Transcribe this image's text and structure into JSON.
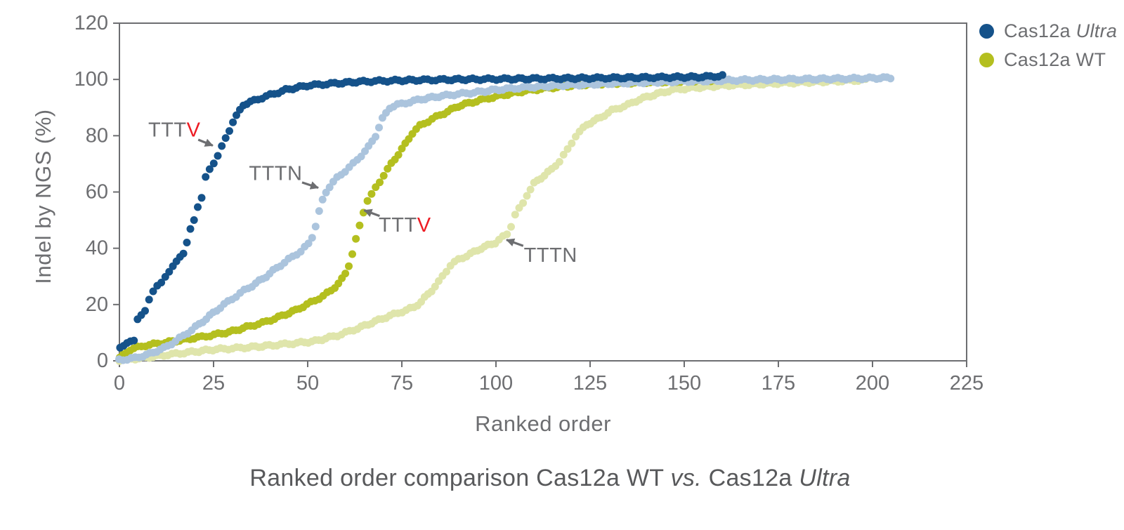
{
  "figure": {
    "caption_parts": [
      {
        "text": "Ranked order comparison Cas12a WT ",
        "italic": false
      },
      {
        "text": "vs.",
        "italic": true
      },
      {
        "text": " Cas12a ",
        "italic": false
      },
      {
        "text": "Ultra",
        "italic": true
      }
    ]
  },
  "colors": {
    "axis": "#6d6e71",
    "tick_text": "#6d6e71",
    "annotation_text": "#6d6e71",
    "annotation_red": "#ed1c24",
    "caption_text": "#58595b",
    "background": "#ffffff"
  },
  "chart_data": {
    "type": "scatter",
    "title": "",
    "xlabel": "Ranked order",
    "ylabel": "Indel by NGS (%)",
    "xlim": [
      0,
      225
    ],
    "ylim": [
      0,
      120
    ],
    "x_ticks": [
      0,
      25,
      50,
      75,
      100,
      125,
      150,
      175,
      200,
      225
    ],
    "y_ticks": [
      0,
      20,
      40,
      60,
      80,
      100,
      120
    ],
    "grid": false,
    "legend_position": "outside-top-right",
    "legend": [
      {
        "label_prefix": "Cas12a ",
        "label_suffix": "Ultra",
        "suffix_italic": true,
        "color": "#15528a"
      },
      {
        "label_prefix": "Cas12a ",
        "label_suffix": "WT",
        "suffix_italic": false,
        "color": "#b4bf1f"
      }
    ],
    "series": [
      {
        "id": "cas12a-wt-tttn",
        "name": "Cas12a WT",
        "pam": "TTTN",
        "color": "#dfe5ab",
        "points_count": 199,
        "anchors": [
          [
            0,
            0.3
          ],
          [
            6,
            1
          ],
          [
            12,
            2
          ],
          [
            18,
            3
          ],
          [
            25,
            4
          ],
          [
            32,
            4.6
          ],
          [
            40,
            5.4
          ],
          [
            46,
            6.2
          ],
          [
            52,
            7
          ],
          [
            58,
            9
          ],
          [
            63,
            11.5
          ],
          [
            68,
            14
          ],
          [
            72,
            16
          ],
          [
            75,
            17.5
          ],
          [
            78,
            19
          ],
          [
            80,
            21
          ],
          [
            83,
            25
          ],
          [
            85,
            28
          ],
          [
            87,
            32
          ],
          [
            88,
            34
          ],
          [
            90,
            36
          ],
          [
            93,
            38
          ],
          [
            96,
            40
          ],
          [
            100,
            42
          ],
          [
            103,
            45
          ],
          [
            104,
            48
          ],
          [
            105,
            52
          ],
          [
            107,
            56
          ],
          [
            108,
            59
          ],
          [
            110,
            63
          ],
          [
            113,
            66
          ],
          [
            115,
            68
          ],
          [
            117,
            71
          ],
          [
            119,
            75
          ],
          [
            121,
            80
          ],
          [
            124,
            84
          ],
          [
            128,
            86.5
          ],
          [
            131,
            89
          ],
          [
            135,
            91
          ],
          [
            138,
            93
          ],
          [
            142,
            94.5
          ],
          [
            147,
            96.3
          ],
          [
            152,
            97
          ],
          [
            160,
            97.8
          ],
          [
            170,
            98.4
          ],
          [
            180,
            98.9
          ],
          [
            190,
            99.4
          ],
          [
            198,
            99.8
          ]
        ]
      },
      {
        "id": "cas12a-wt-tttv",
        "name": "Cas12a WT",
        "pam": "TTTV",
        "color": "#b4bf1f",
        "points_count": 161,
        "anchors": [
          [
            0,
            1
          ],
          [
            3,
            4
          ],
          [
            7,
            5.5
          ],
          [
            12,
            6.5
          ],
          [
            17,
            7.5
          ],
          [
            22,
            8.5
          ],
          [
            26,
            9.5
          ],
          [
            30,
            10.5
          ],
          [
            34,
            12
          ],
          [
            38,
            13.5
          ],
          [
            41,
            15
          ],
          [
            44,
            16.5
          ],
          [
            47,
            18
          ],
          [
            50,
            20
          ],
          [
            52,
            21.5
          ],
          [
            54,
            23
          ],
          [
            56,
            25
          ],
          [
            58,
            27.5
          ],
          [
            59,
            29
          ],
          [
            60,
            31
          ],
          [
            61,
            34
          ],
          [
            62,
            38
          ],
          [
            63,
            43
          ],
          [
            64,
            48
          ],
          [
            65,
            53
          ],
          [
            66,
            57
          ],
          [
            67,
            59
          ],
          [
            68,
            61.5
          ],
          [
            70,
            66
          ],
          [
            72,
            70
          ],
          [
            74,
            73.5
          ],
          [
            76,
            77
          ],
          [
            78,
            81
          ],
          [
            80,
            83.5
          ],
          [
            83,
            86
          ],
          [
            86,
            88
          ],
          [
            90,
            90.5
          ],
          [
            95,
            92.3
          ],
          [
            100,
            94
          ],
          [
            105,
            95.3
          ],
          [
            110,
            96.3
          ],
          [
            116,
            97.3
          ],
          [
            122,
            98
          ],
          [
            130,
            98.6
          ],
          [
            140,
            99
          ],
          [
            150,
            99.4
          ],
          [
            160,
            99.8
          ]
        ]
      },
      {
        "id": "cas12a-ultra-tttn",
        "name": "Cas12a Ultra",
        "pam": "TTTN",
        "color": "#abc4dd",
        "points_count": 206,
        "anchors": [
          [
            0,
            0.3
          ],
          [
            4,
            1
          ],
          [
            8,
            2.5
          ],
          [
            12,
            4.5
          ],
          [
            15,
            7
          ],
          [
            18,
            10
          ],
          [
            21,
            13
          ],
          [
            24,
            16
          ],
          [
            27,
            19
          ],
          [
            30,
            22
          ],
          [
            33,
            25
          ],
          [
            36,
            27.5
          ],
          [
            39,
            30
          ],
          [
            42,
            33
          ],
          [
            45,
            36
          ],
          [
            48,
            39
          ],
          [
            50,
            41.5
          ],
          [
            51,
            44
          ],
          [
            52,
            48
          ],
          [
            53,
            53
          ],
          [
            54,
            57
          ],
          [
            55,
            60
          ],
          [
            56,
            62
          ],
          [
            58,
            65
          ],
          [
            60,
            67.5
          ],
          [
            62,
            70
          ],
          [
            64,
            73
          ],
          [
            66,
            76
          ],
          [
            68,
            80
          ],
          [
            69,
            83
          ],
          [
            70,
            86
          ],
          [
            71,
            88
          ],
          [
            72,
            90
          ],
          [
            74,
            91
          ],
          [
            77,
            92
          ],
          [
            80,
            93
          ],
          [
            85,
            94
          ],
          [
            90,
            94.8
          ],
          [
            95,
            95.5
          ],
          [
            100,
            96.3
          ],
          [
            108,
            97.2
          ],
          [
            116,
            97.8
          ],
          [
            125,
            98.3
          ],
          [
            135,
            98.8
          ],
          [
            145,
            99.2
          ],
          [
            158,
            99.6
          ],
          [
            170,
            99.9
          ],
          [
            182,
            100.1
          ],
          [
            194,
            100.3
          ],
          [
            205,
            100.6
          ]
        ]
      },
      {
        "id": "cas12a-ultra-tttv",
        "name": "Cas12a Ultra",
        "pam": "TTTV",
        "color": "#15528a",
        "points_count": 161,
        "anchors": [
          [
            0,
            5
          ],
          [
            2,
            6
          ],
          [
            4,
            7.5
          ],
          [
            5,
            15
          ],
          [
            6,
            16
          ],
          [
            7,
            17.5
          ],
          [
            8,
            22
          ],
          [
            9,
            25
          ],
          [
            10,
            26.5
          ],
          [
            11,
            27.5
          ],
          [
            12,
            30
          ],
          [
            13,
            32
          ],
          [
            14,
            33.5
          ],
          [
            15,
            35
          ],
          [
            16,
            37
          ],
          [
            17,
            38.5
          ],
          [
            18,
            42
          ],
          [
            19,
            46.5
          ],
          [
            20,
            50
          ],
          [
            21,
            55
          ],
          [
            22,
            58
          ],
          [
            23,
            65
          ],
          [
            24,
            68
          ],
          [
            25,
            70.5
          ],
          [
            26,
            73
          ],
          [
            27,
            76
          ],
          [
            28,
            79
          ],
          [
            29,
            82
          ],
          [
            30,
            85
          ],
          [
            31,
            87
          ],
          [
            32,
            89
          ],
          [
            33,
            91
          ],
          [
            35,
            92
          ],
          [
            37,
            93
          ],
          [
            40,
            94.5
          ],
          [
            44,
            96.3
          ],
          [
            50,
            97.8
          ],
          [
            57,
            98.6
          ],
          [
            64,
            99.2
          ],
          [
            70,
            99.5
          ],
          [
            80,
            99.8
          ],
          [
            90,
            100
          ],
          [
            105,
            100.2
          ],
          [
            120,
            100.4
          ],
          [
            140,
            100.7
          ],
          [
            155,
            100.9
          ],
          [
            160,
            101.3
          ]
        ]
      }
    ],
    "annotations": [
      {
        "id": "tttv-ultra",
        "prefix": "TTT",
        "letter": "V",
        "letter_red": true,
        "label_at": [
          14.6,
          82
        ],
        "tip_at": [
          24.8,
          76.5
        ]
      },
      {
        "id": "tttn-ultra",
        "prefix": "TTT",
        "letter": "N",
        "letter_red": false,
        "label_at": [
          41.5,
          66.5
        ],
        "tip_at": [
          52.8,
          61.5
        ]
      },
      {
        "id": "tttv-wt",
        "prefix": "TTT",
        "letter": "V",
        "letter_red": true,
        "label_at": [
          75.8,
          48.2
        ],
        "tip_at": [
          65,
          53.5
        ]
      },
      {
        "id": "tttn-wt",
        "prefix": "TTT",
        "letter": "N",
        "letter_red": false,
        "label_at": [
          114.5,
          37.4
        ],
        "tip_at": [
          102.8,
          43
        ]
      }
    ]
  }
}
